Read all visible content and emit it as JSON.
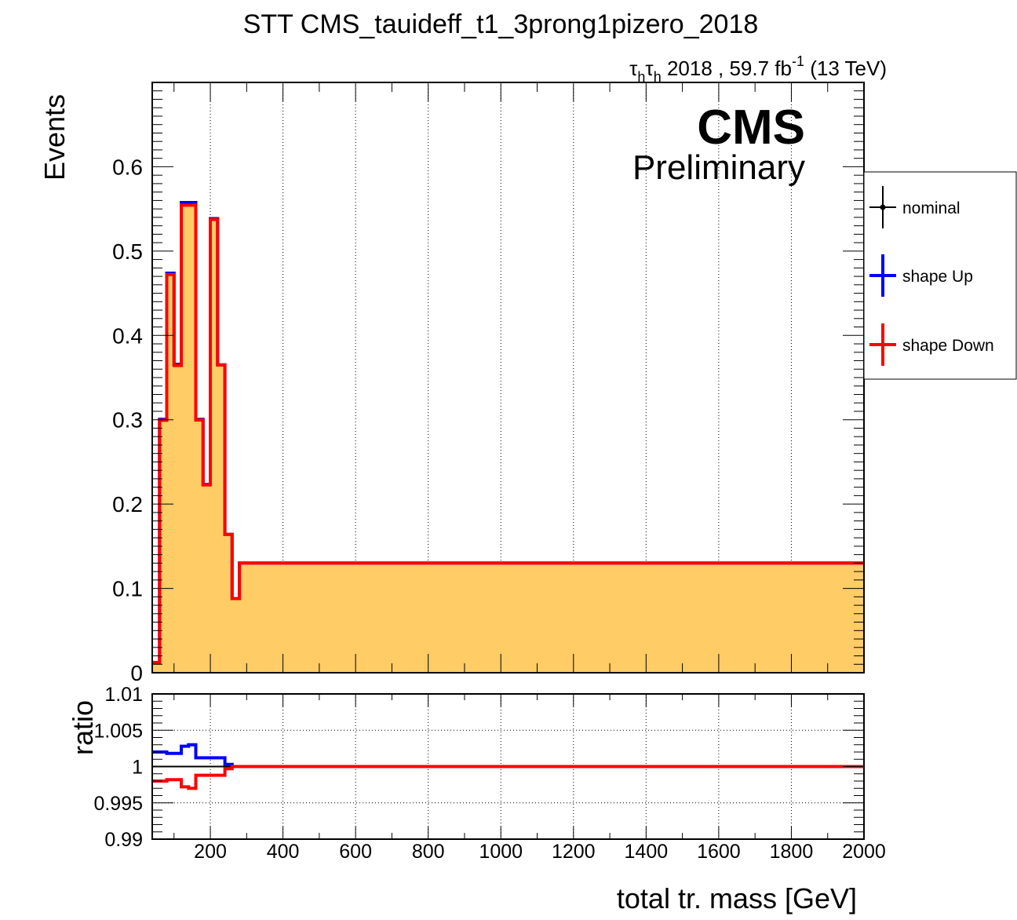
{
  "chart_data": {
    "type": "line",
    "title": "STT CMS_tauideff_t1_3prong1pizero_2018",
    "lumi_label": {
      "tau": "τ",
      "sub": "h",
      "rest": " 2018 , 59.7 fb",
      "sup": "-1",
      "energy": " (13 TeV)"
    },
    "cms_label": "CMS",
    "preliminary_label": "Preliminary",
    "xlabel": "total tr. mass [GeV]",
    "ylabel_top": "Events",
    "ylabel_bottom": "ratio",
    "xlim": [
      40,
      2000
    ],
    "ylim_top": [
      0,
      0.7
    ],
    "ylim_bottom": [
      0.99,
      1.01
    ],
    "x_ticks": [
      "200",
      "400",
      "600",
      "800",
      "1000",
      "1200",
      "1400",
      "1600",
      "1800",
      "2000"
    ],
    "y_ticks_top": [
      "0",
      "0.1",
      "0.2",
      "0.3",
      "0.4",
      "0.5",
      "0.6"
    ],
    "y_ticks_bottom": [
      "0.99",
      "0.995",
      "1",
      "1.005",
      "1.01"
    ],
    "grid": "x major lines in both pads; y lines in ratio pad",
    "legend_position": "right, outside plot",
    "legend": [
      {
        "label": "nominal",
        "color": "#000000"
      },
      {
        "label": "shape Up",
        "color": "#0000ff"
      },
      {
        "label": "shape Down",
        "color": "#ff0000"
      }
    ],
    "bin_edges": [
      40,
      60,
      80,
      100,
      120,
      140,
      160,
      180,
      200,
      220,
      240,
      260,
      280,
      320,
      400,
      2000
    ],
    "series": [
      {
        "name": "nominal",
        "values": [
          0.012,
          0.3,
          0.473,
          0.365,
          0.556,
          0.556,
          0.3,
          0.223,
          0.538,
          0.365,
          0.164,
          0.088,
          0.13,
          0.13,
          0.13
        ],
        "fill": "#ffcc66"
      },
      {
        "name": "shape Up",
        "values": [
          0.012,
          0.3006,
          0.4738,
          0.3657,
          0.5576,
          0.5576,
          0.3004,
          0.2233,
          0.5385,
          0.3651,
          0.164,
          0.088,
          0.13,
          0.13,
          0.13
        ]
      },
      {
        "name": "shape Down",
        "values": [
          0.012,
          0.2994,
          0.4722,
          0.3643,
          0.5544,
          0.5544,
          0.2996,
          0.2227,
          0.5375,
          0.3649,
          0.164,
          0.088,
          0.13,
          0.13,
          0.13
        ]
      }
    ],
    "ratio_edges": [
      40,
      60,
      80,
      100,
      120,
      140,
      160,
      180,
      200,
      220,
      240,
      260,
      280,
      320,
      400,
      2000
    ],
    "ratio_up": [
      1.002,
      1.002,
      1.0018,
      1.0018,
      1.0028,
      1.003,
      1.0012,
      1.0012,
      1.0012,
      1.0012,
      1.0003,
      1.0,
      1.0,
      1.0,
      1.0
    ],
    "ratio_down": [
      0.998,
      0.998,
      0.9982,
      0.9982,
      0.9972,
      0.997,
      0.9988,
      0.9988,
      0.9988,
      0.9988,
      0.9997,
      1.0,
      1.0,
      1.0,
      1.0
    ]
  }
}
